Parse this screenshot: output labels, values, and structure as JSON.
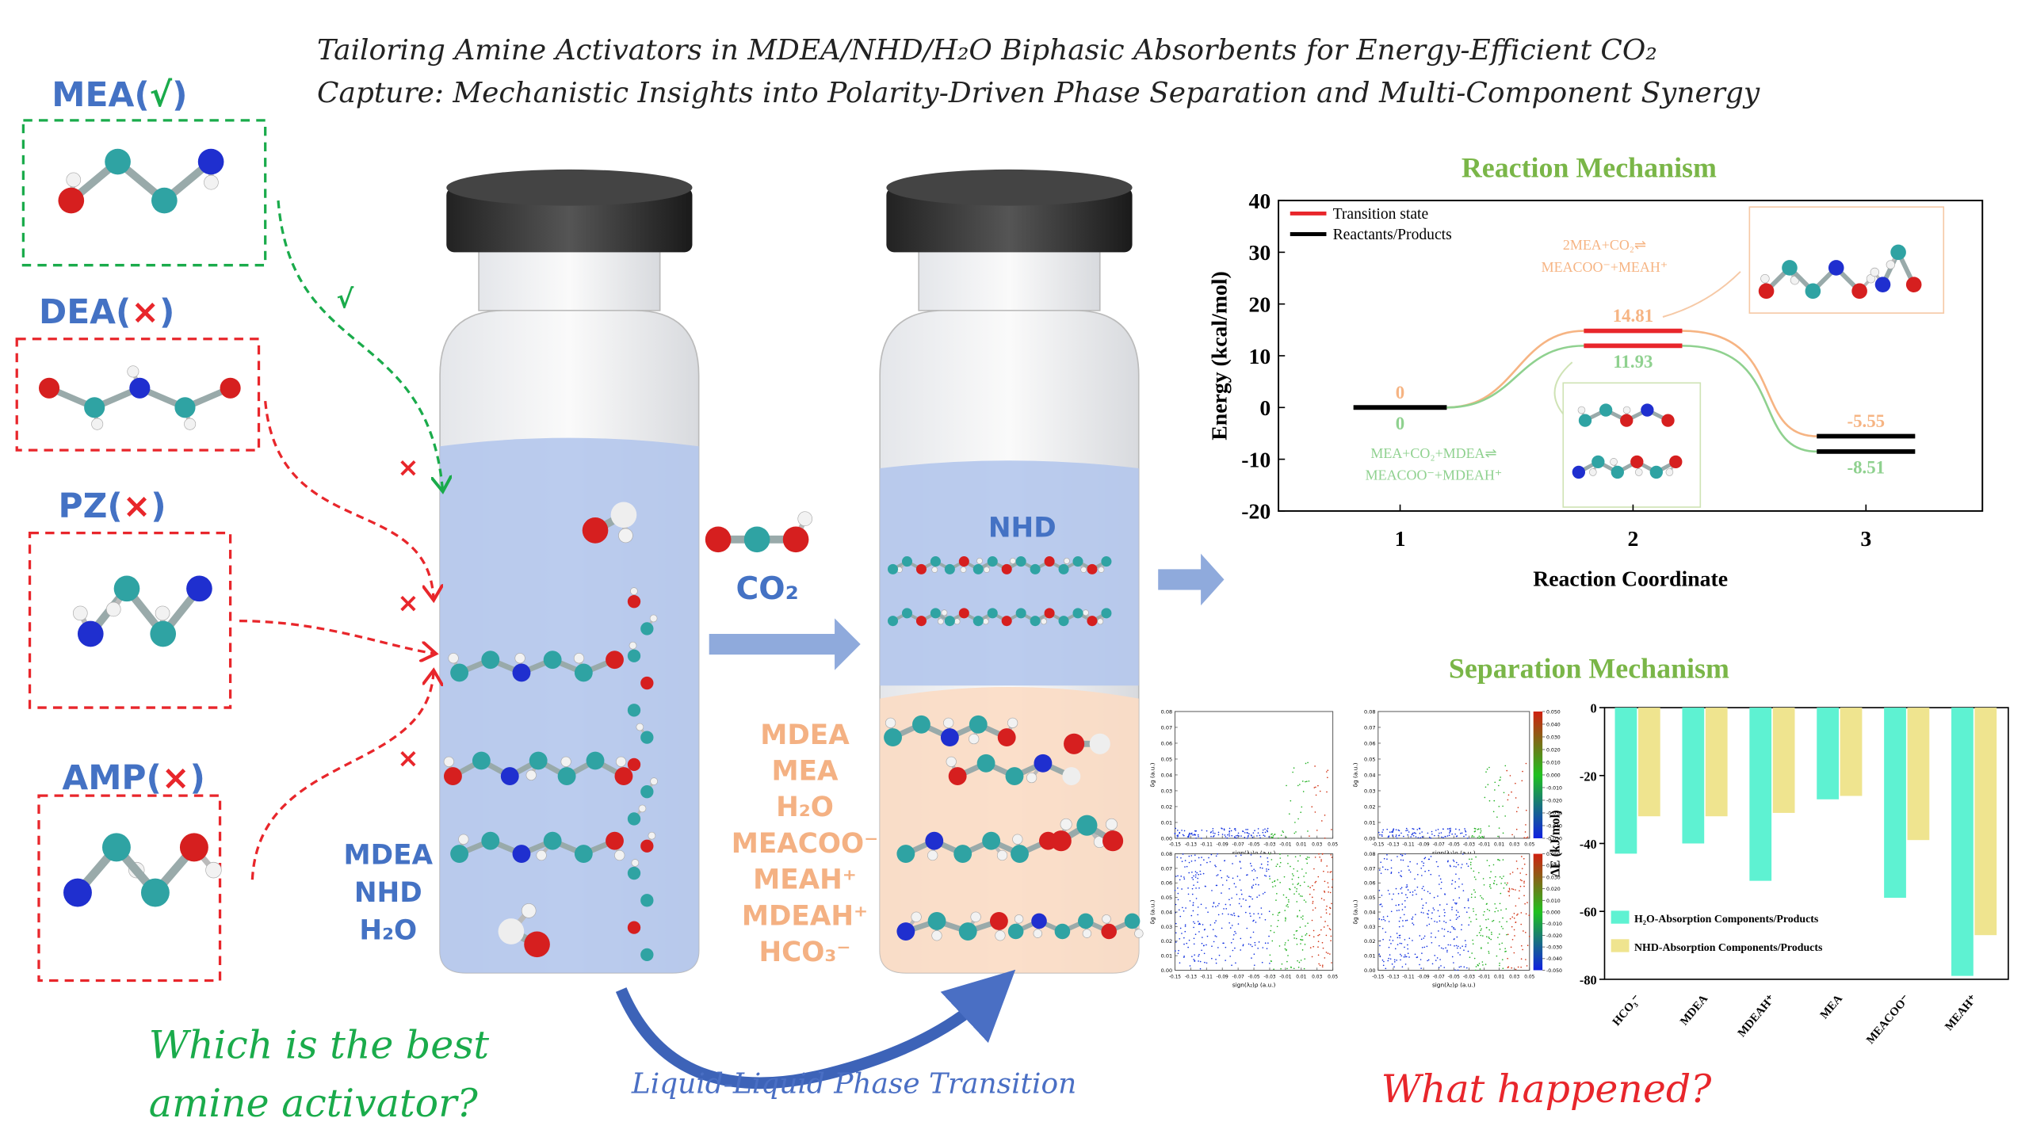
{
  "header": {
    "title_lines": [
      "Tailoring Amine Activators in MDEA/NHD/H₂O Biphasic Absorbents for Energy-Efficient CO₂",
      "Capture: Mechanistic Insights into Polarity-Driven Phase Separation and Multi-Component Synergy"
    ]
  },
  "amines": [
    {
      "label_parts": [
        "MEA(",
        "√",
        ")"
      ],
      "arrow_mark": "√"
    },
    {
      "label_parts": [
        "DEA(",
        "×",
        ")"
      ],
      "arrow_mark": "×"
    },
    {
      "label_parts": [
        "PZ(",
        "×",
        ")"
      ],
      "arrow_mark": "×"
    },
    {
      "label_parts": [
        "AMP(",
        "×",
        ")"
      ],
      "arrow_mark": "×"
    }
  ],
  "question": [
    "Which is the best",
    "amine activator?"
  ],
  "vial1": {
    "labels": [
      "MDEA",
      "NHD",
      "H₂O"
    ]
  },
  "gas": "CO₂",
  "vial2": {
    "upper": "NHD",
    "lower": [
      "MDEA",
      "MEA",
      "H₂O",
      "MEACOO⁻",
      "MEAH⁺",
      "MDEAH⁺",
      "HCO₃⁻"
    ]
  },
  "transition": "Liquid-Liquid Phase Transition",
  "what": "What happened?",
  "charts": [
    {
      "type": "energy-profile",
      "title": "Reaction Mechanism",
      "ylabel": "Energy (kcal/mol)",
      "xlabel": "Reaction Coordinate",
      "ylim": [
        -20,
        40
      ],
      "yticks": [
        -20,
        -10,
        0,
        10,
        20,
        30,
        40
      ],
      "xticks": [
        1,
        2,
        3
      ],
      "legend": [
        {
          "name": "Transition state",
          "color": "#e8262b"
        },
        {
          "name": "Reactants/Products",
          "color": "#000000"
        }
      ],
      "series": [
        {
          "name": [
            "2MEA+CO₂⇌",
            "MEACOO⁻+MEAH⁺"
          ],
          "color": "#f6b483",
          "values": [
            0,
            14.81,
            -5.55
          ]
        },
        {
          "name": [
            "MEA+CO₂+MDEA⇌",
            "MEACOO⁻+MDEAH⁺"
          ],
          "color": "#8fd18f",
          "values": [
            0,
            11.93,
            -8.51
          ]
        }
      ]
    },
    {
      "type": "bar",
      "title": "Separation Mechanism",
      "ylabel": "ΔE (kJ/mol)",
      "ylim": [
        -80,
        0
      ],
      "yticks": [
        -80,
        -60,
        -40,
        -20,
        0
      ],
      "categories": [
        "HCO₃⁻",
        "MDEA",
        "MDEAH⁺",
        "MEA",
        "MEACOO⁻",
        "MEAH⁺"
      ],
      "series": [
        {
          "name": "H₂O-Absorption Components/Products",
          "color": "#5ef2d2",
          "values": [
            -43,
            -40,
            -51,
            -27,
            -56,
            -79
          ]
        },
        {
          "name": "NHD-Absorption Components/Products",
          "color": "#efe48f",
          "values": [
            -32,
            -32,
            -31,
            -26,
            -39,
            -67
          ]
        }
      ]
    },
    {
      "type": "nci",
      "xlabel": "sign(λ₂)ρ (a.u.)",
      "ylabel": "δg (a.u.)",
      "xlim": [
        -0.15,
        0.05
      ],
      "ylim": [
        0,
        0.08
      ],
      "xticks": [
        -0.15,
        -0.13,
        -0.11,
        -0.09,
        -0.07,
        -0.05,
        -0.03,
        -0.01,
        0.01,
        0.03,
        0.05
      ],
      "yticks": [
        {
          "value": 0,
          "label": "0.00"
        },
        0.01,
        0.02,
        0.03,
        0.04,
        0.05,
        0.06,
        0.07,
        0.08
      ],
      "colorbar_ticks": [
        {
          "value": 0.05,
          "label": "0.050"
        },
        {
          "value": 0.04,
          "label": "0.040"
        },
        {
          "value": 0.03,
          "label": "0.030"
        },
        {
          "value": 0.02,
          "label": "0.020"
        },
        {
          "value": 0.01,
          "label": "0.010"
        },
        {
          "value": 0,
          "label": "0.000"
        },
        {
          "value": -0.01,
          "label": "-0.010"
        },
        {
          "value": -0.02,
          "label": "-0.020"
        },
        {
          "value": -0.03,
          "label": "-0.030"
        },
        {
          "value": -0.04,
          "label": "-0.040"
        },
        {
          "value": -0.05,
          "label": "-0.050"
        }
      ]
    }
  ]
}
